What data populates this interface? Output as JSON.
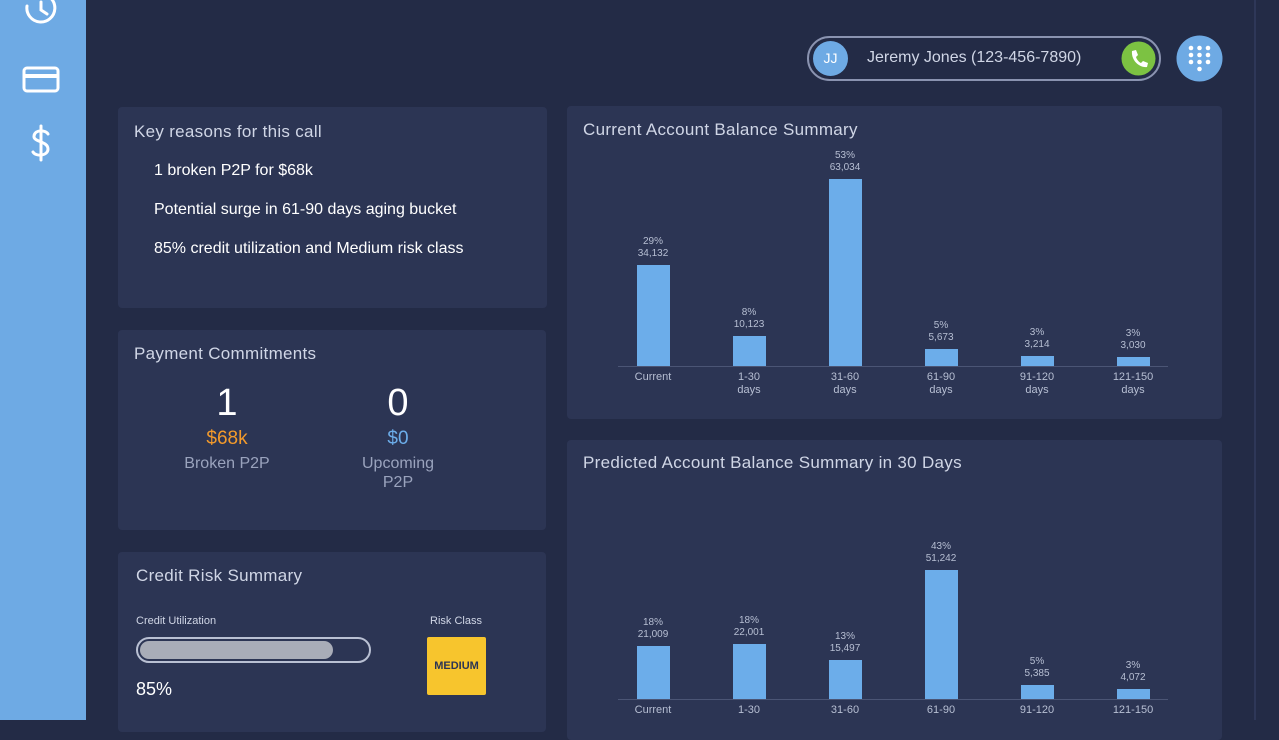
{
  "header": {
    "initials": "JJ",
    "contact": "Jeremy Jones (123-456-7890)"
  },
  "key_reasons": {
    "title": "Key reasons for this call",
    "items": [
      "1 broken P2P for $68k",
      "Potential surge in 61-90 days aging bucket",
      "85% credit utilization and Medium risk class"
    ]
  },
  "payment_commitments": {
    "title": "Payment Commitments",
    "broken": {
      "count": 1,
      "amount": "$68k",
      "label": "Broken P2P"
    },
    "upcoming": {
      "count": 0,
      "amount": "$0",
      "label": "Upcoming P2P"
    }
  },
  "credit_risk": {
    "title": "Credit Risk Summary",
    "utilization_title": "Credit Utilization",
    "utilization": 85,
    "utilization_label": "85%",
    "risk_class_title": "Risk Class",
    "risk_class": "MEDIUM"
  },
  "chart_data": [
    {
      "type": "bar",
      "title": "Current Account Balance Summary",
      "color": "#6cadea",
      "categories": [
        "Current",
        "1-30 days",
        "31-60 days",
        "61-90 days",
        "91-120 days",
        "121-150 days"
      ],
      "values": [
        34132,
        10123,
        63034,
        5673,
        3214,
        3030
      ],
      "value_labels": [
        "34,132",
        "10,123",
        "63,034",
        "5,673",
        "3,214",
        "3,030"
      ],
      "percent_labels": [
        "29%",
        "8%",
        "53%",
        "5%",
        "3%",
        "3%"
      ]
    },
    {
      "type": "bar",
      "title": "Predicted Account Balance Summary in 30 Days",
      "color": "#6cadea",
      "categories": [
        "Current",
        "1-30",
        "31-60",
        "61-90",
        "91-120",
        "121-150"
      ],
      "values": [
        21009,
        22001,
        15497,
        51242,
        5385,
        4072
      ],
      "value_labels": [
        "21,009",
        "22,001",
        "15,497",
        "51,242",
        "5,385",
        "4,072"
      ],
      "percent_labels": [
        "18%",
        "18%",
        "13%",
        "43%",
        "5%",
        "3%"
      ]
    }
  ]
}
